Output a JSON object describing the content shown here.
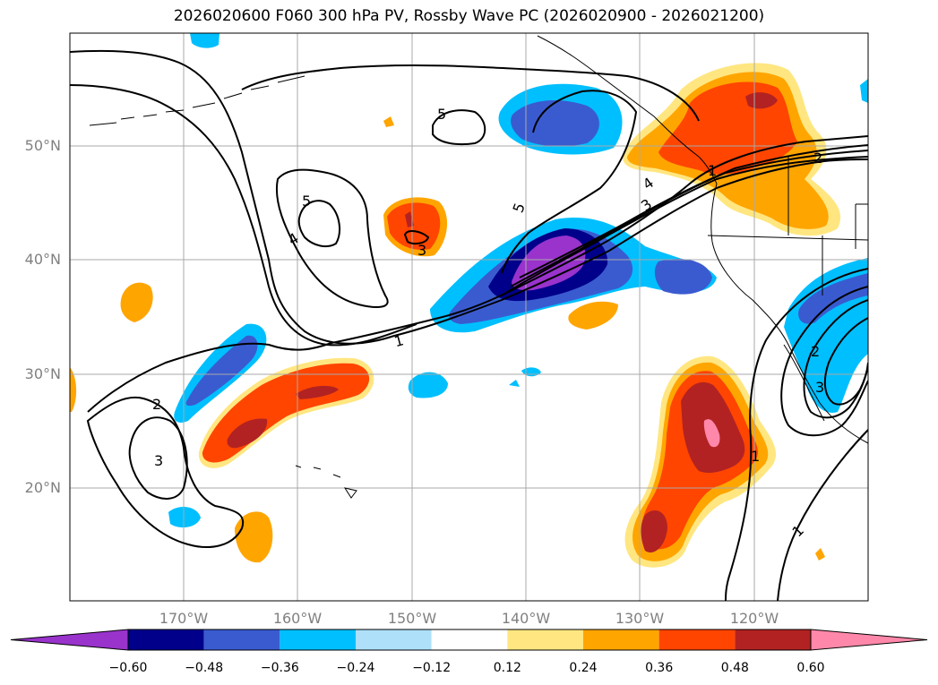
{
  "title": "2026020600 F060 300 hPa PV, Rossby Wave PC (2026020900 - 2026021200)",
  "lat_labels": [
    "50°N",
    "40°N",
    "30°N",
    "20°N"
  ],
  "lon_labels": [
    "170°W",
    "160°W",
    "150°W",
    "140°W",
    "130°W",
    "120°W"
  ],
  "colorbar": {
    "ticks": [
      "−0.60",
      "−0.48",
      "−0.36",
      "−0.24",
      "−0.12",
      "0.12",
      "0.24",
      "0.36",
      "0.48",
      "0.60"
    ],
    "colors": [
      "#9933cc",
      "#00008b",
      "#3a5bd0",
      "#00bfff",
      "#aee0fa",
      "#ffffff",
      "#ffe680",
      "#ffa500",
      "#ff4500",
      "#b22222",
      "#ff88aa"
    ]
  },
  "contour_labels": [
    "1",
    "2",
    "3",
    "4",
    "5",
    "5",
    "5",
    "3",
    "4",
    "3",
    "2",
    "1",
    "1",
    "3",
    "2",
    "1"
  ],
  "colors": {
    "grid": "#a9a9a9",
    "axis_text": "#808080",
    "contour": "#000000",
    "coastline": "#000000"
  }
}
